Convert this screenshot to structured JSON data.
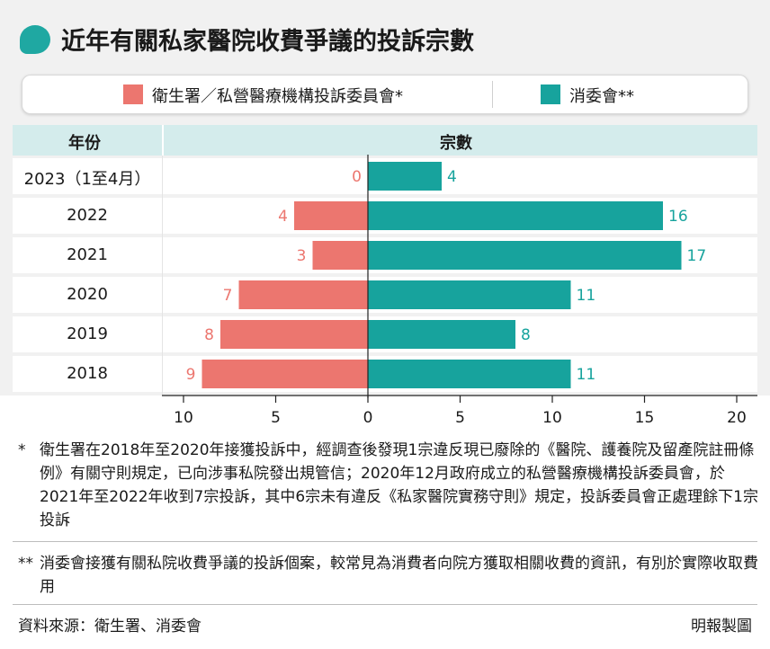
{
  "title": "近年有關私家醫院收費爭議的投訴宗數",
  "legend": {
    "series_a": "衛生署／私營醫療機構投訴委員會*",
    "series_b": "消委會**"
  },
  "header": {
    "year": "年份",
    "count": "宗數"
  },
  "colors": {
    "series_a": "#ec766f",
    "series_b": "#17a39d",
    "accent": "#1fa8a2",
    "header_bg": "#d4ecec"
  },
  "chart_data": {
    "type": "bar",
    "orientation": "horizontal-diverging",
    "categories": [
      "2023（1至4月）",
      "2022",
      "2021",
      "2020",
      "2019",
      "2018"
    ],
    "series": [
      {
        "name": "衛生署／私營醫療機構投訴委員會*",
        "values": [
          0,
          4,
          3,
          7,
          8,
          9
        ],
        "direction": "left"
      },
      {
        "name": "消委會**",
        "values": [
          4,
          16,
          17,
          11,
          8,
          11
        ],
        "direction": "right"
      }
    ],
    "xticks": [
      "10",
      "5",
      "0",
      "5",
      "10",
      "15",
      "20"
    ],
    "xlim_left": 10,
    "xlim_right": 20,
    "grid": false
  },
  "notes": [
    {
      "mark": "*",
      "text": "衛生署在2018年至2020年接獲投訴中，經調查後發現1宗違反現已廢除的《醫院、護養院及留產院註冊條例》有關守則規定，已向涉事私院發出規管信；2020年12月政府成立的私營醫療機構投訴委員會，於2021年至2022年收到7宗投訴，其中6宗未有違反《私家醫院實務守則》規定，投訴委員會正處理餘下1宗投訴"
    },
    {
      "mark": "**",
      "text": "消委會接獲有關私院收費爭議的投訴個案，較常見為消費者向院方獲取相關收費的資訊，有別於實際收取費用"
    }
  ],
  "source": "資料來源：衛生署、消委會",
  "credit": "明報製圖"
}
